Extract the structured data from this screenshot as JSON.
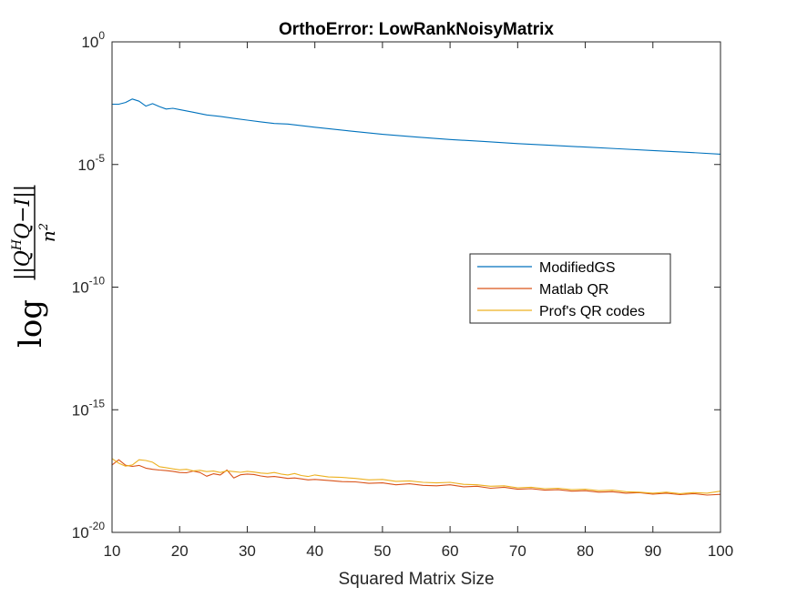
{
  "chart_data": {
    "type": "line",
    "title": "OrthoError: LowRankNoisyMatrix",
    "xlabel": "Squared Matrix Size",
    "ylabel": {
      "prefix": "log",
      "numerator": "||Q",
      "numerator_sup": "H",
      "numerator_rest": "Q−I||",
      "denominator": "n",
      "denominator_sup": "2"
    },
    "yscale": "log",
    "xlim": [
      10,
      100
    ],
    "ylim_exponent": [
      -20,
      0
    ],
    "x_ticks": [
      "10",
      "20",
      "30",
      "40",
      "50",
      "60",
      "70",
      "80",
      "90",
      "100"
    ],
    "y_ticks": [
      {
        "base": "10",
        "exp": "0"
      },
      {
        "base": "10",
        "exp": "-5"
      },
      {
        "base": "10",
        "exp": "-10"
      },
      {
        "base": "10",
        "exp": "-15"
      },
      {
        "base": "10",
        "exp": "-20"
      }
    ],
    "grid": false,
    "legend": {
      "position": "center-right"
    },
    "x": [
      10,
      100
    ],
    "series": [
      {
        "name": "ModifiedGS",
        "color": "#0072bd",
        "log10_y": [
          [
            10,
            -2.54
          ],
          [
            11,
            -2.54
          ],
          [
            12,
            -2.47
          ],
          [
            13,
            -2.33
          ],
          [
            14,
            -2.42
          ],
          [
            15,
            -2.62
          ],
          [
            16,
            -2.52
          ],
          [
            17,
            -2.64
          ],
          [
            18,
            -2.74
          ],
          [
            19,
            -2.71
          ],
          [
            20,
            -2.76
          ],
          [
            22,
            -2.87
          ],
          [
            24,
            -2.98
          ],
          [
            26,
            -3.04
          ],
          [
            28,
            -3.12
          ],
          [
            30,
            -3.19
          ],
          [
            32,
            -3.26
          ],
          [
            34,
            -3.33
          ],
          [
            36,
            -3.35
          ],
          [
            40,
            -3.48
          ],
          [
            45,
            -3.63
          ],
          [
            50,
            -3.77
          ],
          [
            55,
            -3.88
          ],
          [
            60,
            -3.98
          ],
          [
            65,
            -4.06
          ],
          [
            70,
            -4.15
          ],
          [
            75,
            -4.22
          ],
          [
            80,
            -4.29
          ],
          [
            85,
            -4.36
          ],
          [
            90,
            -4.43
          ],
          [
            95,
            -4.5
          ],
          [
            100,
            -4.58
          ]
        ]
      },
      {
        "name": "Matlab QR",
        "color": "#d95319",
        "log10_y": [
          [
            10,
            -17.25
          ],
          [
            11,
            -17.04
          ],
          [
            12,
            -17.26
          ],
          [
            13,
            -17.31
          ],
          [
            14,
            -17.27
          ],
          [
            15,
            -17.38
          ],
          [
            16,
            -17.43
          ],
          [
            17,
            -17.46
          ],
          [
            18,
            -17.48
          ],
          [
            19,
            -17.51
          ],
          [
            20,
            -17.56
          ],
          [
            21,
            -17.57
          ],
          [
            22,
            -17.5
          ],
          [
            23,
            -17.56
          ],
          [
            24,
            -17.71
          ],
          [
            25,
            -17.61
          ],
          [
            26,
            -17.66
          ],
          [
            27,
            -17.46
          ],
          [
            28,
            -17.78
          ],
          [
            29,
            -17.65
          ],
          [
            30,
            -17.62
          ],
          [
            31,
            -17.64
          ],
          [
            32,
            -17.7
          ],
          [
            33,
            -17.74
          ],
          [
            34,
            -17.72
          ],
          [
            35,
            -17.76
          ],
          [
            36,
            -17.8
          ],
          [
            37,
            -17.78
          ],
          [
            38,
            -17.82
          ],
          [
            39,
            -17.86
          ],
          [
            40,
            -17.84
          ],
          [
            42,
            -17.88
          ],
          [
            44,
            -17.93
          ],
          [
            46,
            -17.94
          ],
          [
            48,
            -18.0
          ],
          [
            50,
            -17.98
          ],
          [
            52,
            -18.06
          ],
          [
            54,
            -18.02
          ],
          [
            56,
            -18.08
          ],
          [
            58,
            -18.1
          ],
          [
            60,
            -18.06
          ],
          [
            62,
            -18.14
          ],
          [
            64,
            -18.12
          ],
          [
            66,
            -18.2
          ],
          [
            68,
            -18.16
          ],
          [
            70,
            -18.24
          ],
          [
            72,
            -18.22
          ],
          [
            74,
            -18.28
          ],
          [
            76,
            -18.26
          ],
          [
            78,
            -18.32
          ],
          [
            80,
            -18.3
          ],
          [
            82,
            -18.36
          ],
          [
            84,
            -18.34
          ],
          [
            86,
            -18.4
          ],
          [
            88,
            -18.38
          ],
          [
            90,
            -18.44
          ],
          [
            92,
            -18.4
          ],
          [
            94,
            -18.46
          ],
          [
            96,
            -18.42
          ],
          [
            98,
            -18.48
          ],
          [
            100,
            -18.45
          ]
        ]
      },
      {
        "name": "Prof's QR codes",
        "color": "#edb120",
        "log10_y": [
          [
            10,
            -16.99
          ],
          [
            11,
            -17.18
          ],
          [
            12,
            -17.3
          ],
          [
            13,
            -17.25
          ],
          [
            14,
            -17.04
          ],
          [
            15,
            -17.07
          ],
          [
            16,
            -17.14
          ],
          [
            17,
            -17.32
          ],
          [
            18,
            -17.36
          ],
          [
            19,
            -17.41
          ],
          [
            20,
            -17.45
          ],
          [
            21,
            -17.43
          ],
          [
            22,
            -17.49
          ],
          [
            23,
            -17.47
          ],
          [
            24,
            -17.52
          ],
          [
            25,
            -17.5
          ],
          [
            26,
            -17.56
          ],
          [
            27,
            -17.49
          ],
          [
            28,
            -17.52
          ],
          [
            29,
            -17.55
          ],
          [
            30,
            -17.51
          ],
          [
            31,
            -17.54
          ],
          [
            32,
            -17.58
          ],
          [
            33,
            -17.6
          ],
          [
            34,
            -17.56
          ],
          [
            35,
            -17.62
          ],
          [
            36,
            -17.66
          ],
          [
            37,
            -17.6
          ],
          [
            38,
            -17.68
          ],
          [
            39,
            -17.72
          ],
          [
            40,
            -17.66
          ],
          [
            42,
            -17.74
          ],
          [
            44,
            -17.76
          ],
          [
            46,
            -17.8
          ],
          [
            48,
            -17.86
          ],
          [
            50,
            -17.84
          ],
          [
            52,
            -17.92
          ],
          [
            54,
            -17.9
          ],
          [
            56,
            -17.96
          ],
          [
            58,
            -17.98
          ],
          [
            60,
            -17.96
          ],
          [
            62,
            -18.04
          ],
          [
            64,
            -18.06
          ],
          [
            66,
            -18.12
          ],
          [
            68,
            -18.1
          ],
          [
            70,
            -18.18
          ],
          [
            72,
            -18.16
          ],
          [
            74,
            -18.22
          ],
          [
            76,
            -18.2
          ],
          [
            78,
            -18.26
          ],
          [
            80,
            -18.24
          ],
          [
            82,
            -18.3
          ],
          [
            84,
            -18.28
          ],
          [
            86,
            -18.34
          ],
          [
            88,
            -18.36
          ],
          [
            90,
            -18.4
          ],
          [
            92,
            -18.36
          ],
          [
            94,
            -18.42
          ],
          [
            96,
            -18.38
          ],
          [
            98,
            -18.4
          ],
          [
            100,
            -18.32
          ]
        ]
      }
    ]
  }
}
